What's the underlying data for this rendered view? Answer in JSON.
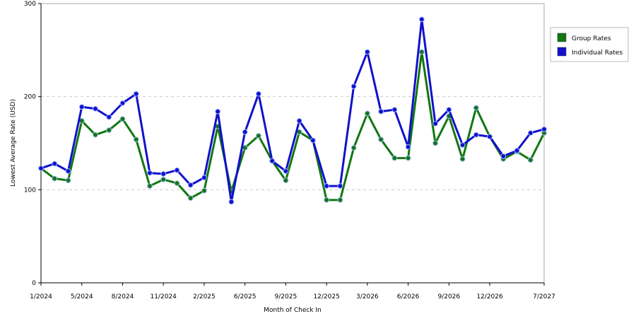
{
  "chart_data": {
    "type": "line",
    "xlabel": "Month of Check In",
    "ylabel": "Lowest Average Rate (USD)",
    "ylim": [
      0,
      300
    ],
    "yticks": [
      0,
      100,
      200,
      300
    ],
    "grid": true,
    "legend_position": "right",
    "x_tick_labels": [
      "1/2024",
      "5/2024",
      "8/2024",
      "11/2024",
      "2/2025",
      "6/2025",
      "9/2025",
      "12/2025",
      "3/2026",
      "6/2026",
      "9/2026",
      "12/2026",
      "7/2027"
    ],
    "x_tick_indices": [
      0,
      3,
      6,
      9,
      12,
      15,
      18,
      21,
      24,
      27,
      30,
      33,
      37
    ],
    "series": [
      {
        "name": "Group Rates",
        "color": "#117711",
        "values": [
          123,
          112,
          110,
          174,
          159,
          164,
          176,
          154,
          104,
          111,
          107,
          91,
          99,
          168,
          98,
          145,
          158,
          131,
          110,
          162,
          153,
          89,
          89,
          145,
          182,
          154,
          134,
          134,
          248,
          150,
          179,
          133,
          188,
          157,
          133,
          141,
          132,
          161
        ]
      },
      {
        "name": "Individual Rates",
        "color": "#1111cc",
        "values": [
          123,
          128,
          120,
          189,
          187,
          178,
          193,
          203,
          118,
          117,
          121,
          105,
          113,
          184,
          87,
          162,
          203,
          131,
          120,
          174,
          153,
          104,
          104,
          211,
          248,
          184,
          186,
          146,
          283,
          171,
          186,
          148,
          159,
          157,
          136,
          142,
          161,
          165
        ]
      }
    ]
  }
}
